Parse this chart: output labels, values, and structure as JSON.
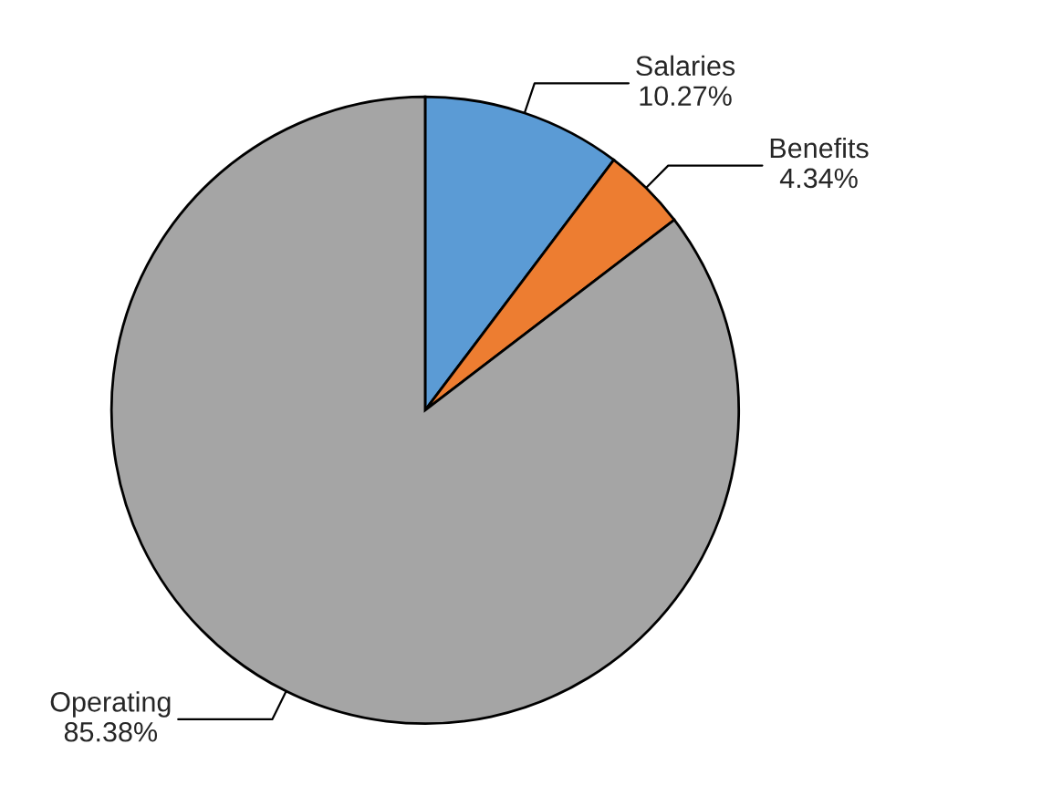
{
  "chart_data": {
    "type": "pie",
    "categories": [
      "Salaries",
      "Benefits",
      "Operating"
    ],
    "values": [
      10.27,
      4.34,
      85.38
    ],
    "colors": [
      "#5b9bd5",
      "#ed7d31",
      "#a5a5a5"
    ],
    "value_labels": [
      "10.27%",
      "4.34%",
      "85.38%"
    ],
    "legend": false
  }
}
